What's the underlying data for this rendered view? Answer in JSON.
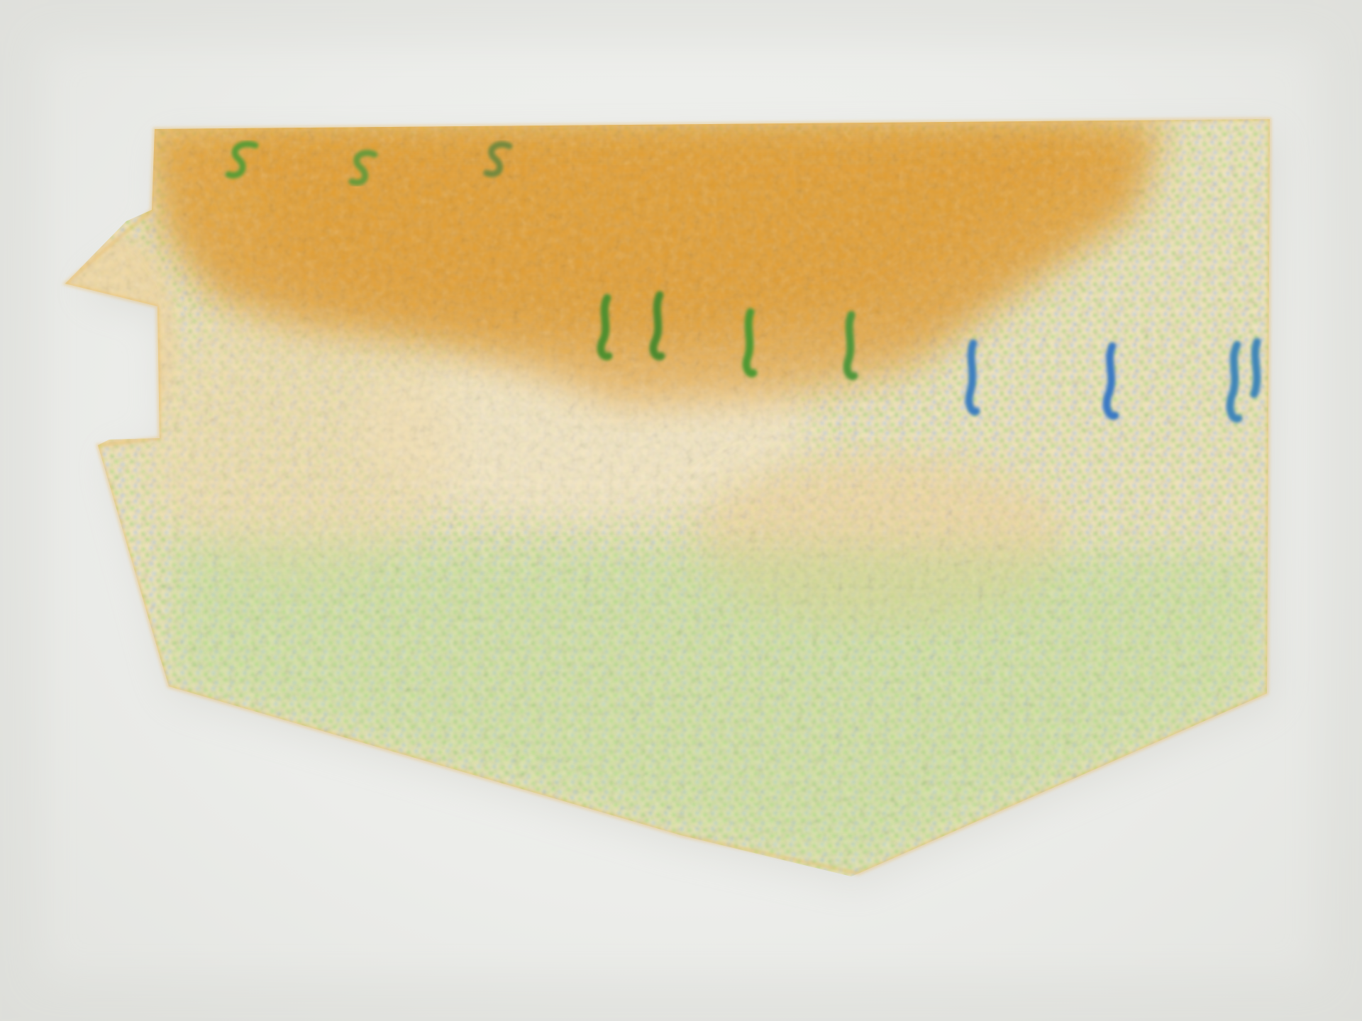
{
  "image": {
    "subject": "paper-strip",
    "colors": {
      "background": "#ecedea",
      "orange_band": "#e2a43c",
      "orange_light": "#f3d9a6",
      "green_speckle": "#8fd86a",
      "blue_speckle": "#8cc3ef",
      "mark_green": "#4e9a33",
      "mark_blue": "#3d7fc9"
    }
  }
}
